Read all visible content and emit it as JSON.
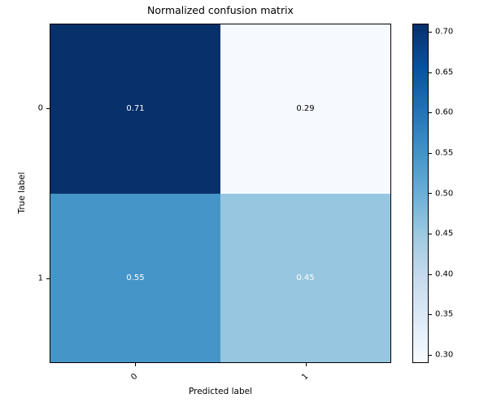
{
  "figure": {
    "background": "#ffffff",
    "text_color": "#000000"
  },
  "chart_data": {
    "type": "heatmap",
    "title": "Normalized confusion matrix",
    "xlabel": "Predicted label",
    "ylabel": "True label",
    "x_tick_labels": [
      "0",
      "1"
    ],
    "y_tick_labels": [
      "0",
      "1"
    ],
    "colormap": "Blues",
    "vmin": 0.29,
    "vmax": 0.71,
    "grid": false,
    "legend": null,
    "matrix": [
      [
        0.71,
        0.29
      ],
      [
        0.55,
        0.45
      ]
    ],
    "cells": [
      {
        "row": 0,
        "col": 0,
        "label": "0.71",
        "bg": "#08306b",
        "text_color": "#ffffff"
      },
      {
        "row": 0,
        "col": 1,
        "label": "0.29",
        "bg": "#f6fafe",
        "text_color": "#000000"
      },
      {
        "row": 1,
        "col": 0,
        "label": "0.55",
        "bg": "#4695c8",
        "text_color": "#ffffff"
      },
      {
        "row": 1,
        "col": 1,
        "label": "0.45",
        "bg": "#97c6e0",
        "text_color": "#ffffff"
      }
    ],
    "colorbar": {
      "tick_labels": [
        "0.70",
        "0.65",
        "0.60",
        "0.55",
        "0.50",
        "0.45",
        "0.40",
        "0.35",
        "0.30"
      ],
      "tick_values": [
        0.7,
        0.65,
        0.6,
        0.55,
        0.5,
        0.45,
        0.4,
        0.35,
        0.3
      ],
      "gradient_stops": [
        "#f7fbff",
        "#deebf7",
        "#c6dbef",
        "#9ecae1",
        "#6baed6",
        "#4292c6",
        "#2171b5",
        "#08519c",
        "#08306b"
      ]
    }
  }
}
